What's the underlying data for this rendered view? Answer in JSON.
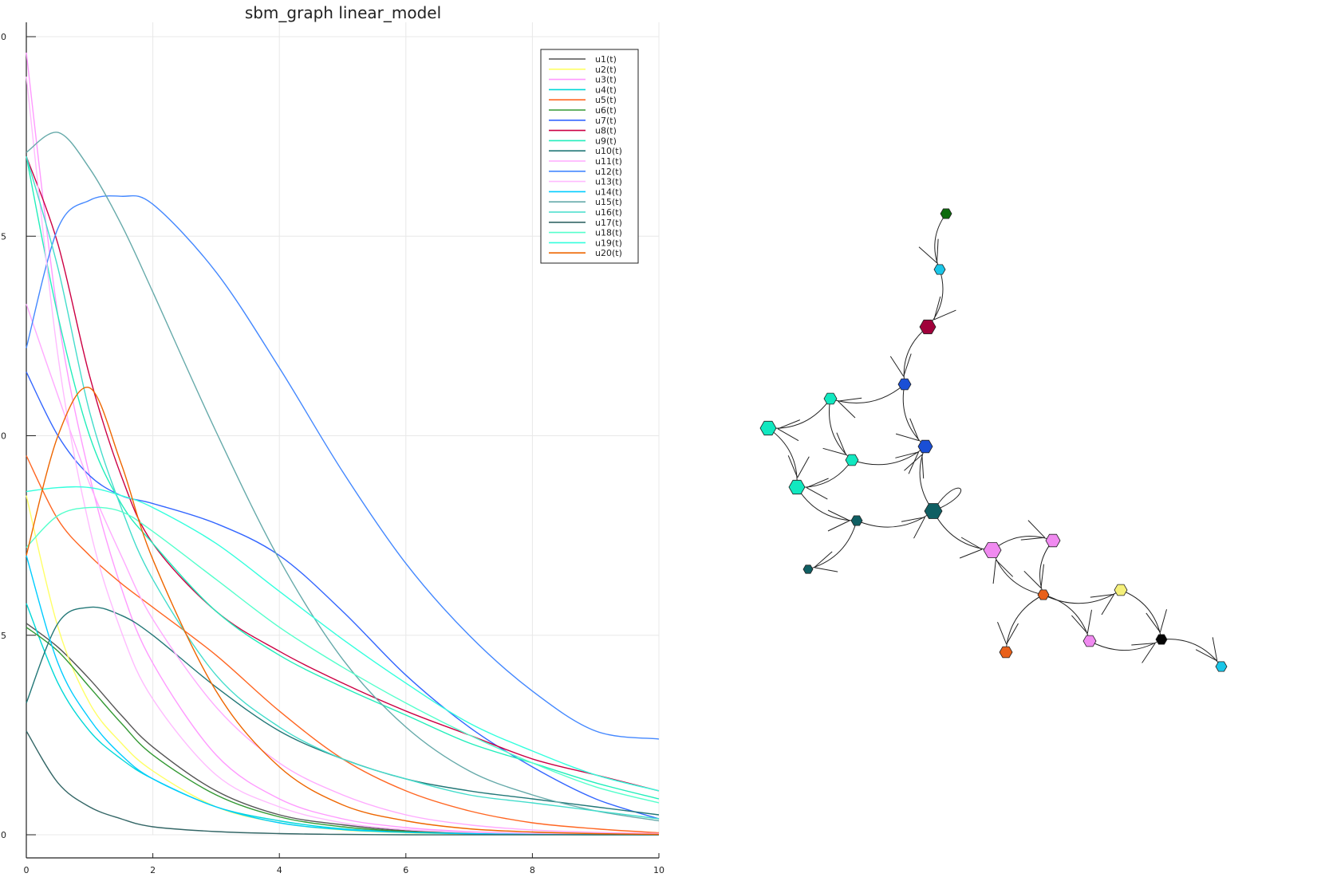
{
  "chart_data": [
    {
      "type": "line",
      "title": "sbm_graph linear_model",
      "xlabel": "",
      "ylabel": "",
      "xlim": [
        0,
        10
      ],
      "ylim": [
        0,
        20
      ],
      "x_ticks": [
        "0",
        "2",
        "4",
        "6",
        "8",
        "10"
      ],
      "y_ticks": [
        "0",
        "5",
        "0",
        "5",
        "0"
      ],
      "grid": true,
      "legend_position": "top-right",
      "x": [
        0,
        0.5,
        1,
        1.5,
        2,
        3,
        4,
        5,
        6,
        7,
        8,
        9,
        10
      ],
      "series": [
        {
          "name": "u1(t)",
          "color": "#555555",
          "values": [
            5.3,
            4.7,
            3.9,
            3.0,
            2.2,
            1.1,
            0.5,
            0.25,
            0.1,
            0.05,
            0.02,
            0.01,
            0.0
          ]
        },
        {
          "name": "u2(t)",
          "color": "#ffff66",
          "values": [
            8.5,
            5.2,
            3.3,
            2.3,
            1.6,
            0.7,
            0.3,
            0.12,
            0.05,
            0.02,
            0.01,
            0.0,
            0.0
          ]
        },
        {
          "name": "u3(t)",
          "color": "#ff99ff",
          "values": [
            19.6,
            13.0,
            9.0,
            6.2,
            4.3,
            2.0,
            0.9,
            0.4,
            0.18,
            0.08,
            0.04,
            0.02,
            0.01
          ]
        },
        {
          "name": "u4(t)",
          "color": "#00d8d8",
          "values": [
            5.8,
            3.8,
            2.6,
            1.9,
            1.4,
            0.7,
            0.35,
            0.15,
            0.07,
            0.03,
            0.02,
            0.01,
            0.0
          ]
        },
        {
          "name": "u5(t)",
          "color": "#ff6622",
          "values": [
            9.5,
            7.9,
            7.0,
            6.3,
            5.7,
            4.5,
            3.1,
            1.9,
            1.1,
            0.6,
            0.3,
            0.15,
            0.05
          ]
        },
        {
          "name": "u6(t)",
          "color": "#339933",
          "values": [
            5.2,
            4.6,
            3.7,
            2.8,
            2.0,
            1.0,
            0.45,
            0.2,
            0.08,
            0.04,
            0.02,
            0.01,
            0.0
          ]
        },
        {
          "name": "u7(t)",
          "color": "#3366ff",
          "values": [
            11.6,
            10.0,
            9.0,
            8.5,
            8.3,
            7.8,
            7.0,
            5.6,
            4.0,
            2.7,
            1.7,
            0.9,
            0.4
          ]
        },
        {
          "name": "u8(t)",
          "color": "#cc0044",
          "values": [
            17.0,
            14.8,
            11.5,
            9.0,
            7.3,
            5.6,
            4.6,
            3.8,
            3.1,
            2.5,
            1.9,
            1.5,
            1.1
          ]
        },
        {
          "name": "u9(t)",
          "color": "#22eebb",
          "values": [
            17.0,
            13.0,
            10.0,
            8.3,
            7.3,
            5.6,
            4.5,
            3.7,
            3.0,
            2.3,
            1.8,
            1.3,
            0.9
          ]
        },
        {
          "name": "u10(t)",
          "color": "#227777",
          "values": [
            3.3,
            5.3,
            5.7,
            5.5,
            5.0,
            3.7,
            2.6,
            1.9,
            1.4,
            1.1,
            0.9,
            0.7,
            0.5
          ]
        },
        {
          "name": "u11(t)",
          "color": "#ffaaff",
          "values": [
            13.3,
            11.0,
            8.8,
            7.0,
            5.4,
            3.2,
            1.8,
            1.0,
            0.5,
            0.25,
            0.12,
            0.06,
            0.03
          ]
        },
        {
          "name": "u12(t)",
          "color": "#4488ff",
          "values": [
            12.2,
            15.2,
            15.9,
            16.0,
            15.8,
            14.1,
            11.7,
            9.1,
            6.8,
            5.0,
            3.6,
            2.6,
            2.4
          ]
        },
        {
          "name": "u13(t)",
          "color": "#ffbbff",
          "values": [
            19.0,
            12.0,
            7.7,
            5.1,
            3.4,
            1.5,
            0.7,
            0.3,
            0.13,
            0.06,
            0.03,
            0.01,
            0.0
          ]
        },
        {
          "name": "u14(t)",
          "color": "#00ccff",
          "values": [
            7.0,
            4.3,
            2.9,
            2.0,
            1.4,
            0.7,
            0.3,
            0.13,
            0.06,
            0.03,
            0.01,
            0.0,
            0.0
          ]
        },
        {
          "name": "u15(t)",
          "color": "#66aaaa",
          "values": [
            17.1,
            17.6,
            16.7,
            15.3,
            13.6,
            10.1,
            6.9,
            4.4,
            2.7,
            1.6,
            1.0,
            0.6,
            0.35
          ]
        },
        {
          "name": "u16(t)",
          "color": "#44ddcc",
          "values": [
            17.0,
            14.2,
            10.6,
            8.2,
            6.4,
            4.0,
            2.7,
            1.9,
            1.4,
            1.0,
            0.8,
            0.6,
            0.4
          ]
        },
        {
          "name": "u17(t)",
          "color": "#336666",
          "values": [
            2.6,
            1.3,
            0.7,
            0.4,
            0.2,
            0.08,
            0.03,
            0.01,
            0.0,
            0.0,
            0.0,
            0.0,
            0.0
          ]
        },
        {
          "name": "u18(t)",
          "color": "#55ffcc",
          "values": [
            7.2,
            8.0,
            8.2,
            8.1,
            7.6,
            6.4,
            5.2,
            4.2,
            3.3,
            2.5,
            1.8,
            1.2,
            0.8
          ]
        },
        {
          "name": "u19(t)",
          "color": "#33ffdd",
          "values": [
            8.6,
            8.7,
            8.7,
            8.5,
            8.2,
            7.3,
            6.1,
            4.9,
            3.8,
            2.8,
            2.1,
            1.5,
            1.1
          ]
        },
        {
          "name": "u20(t)",
          "color": "#ee6600",
          "values": [
            7.0,
            10.0,
            11.2,
            9.3,
            6.9,
            3.6,
            1.7,
            0.75,
            0.35,
            0.15,
            0.07,
            0.03,
            0.01
          ]
        }
      ]
    },
    {
      "type": "graph",
      "title": "",
      "nodes": [
        {
          "id": 1,
          "color": "#0d6b0d"
        },
        {
          "id": 2,
          "color": "#1ac6e8"
        },
        {
          "id": 3,
          "color": "#a0003a"
        },
        {
          "id": 4,
          "color": "#1a4fd6"
        },
        {
          "id": 5,
          "color": "#11e8c0"
        },
        {
          "id": 6,
          "color": "#11e8c0"
        },
        {
          "id": 7,
          "color": "#1a4fd6"
        },
        {
          "id": 8,
          "color": "#11e8c0"
        },
        {
          "id": 9,
          "color": "#11e8c0"
        },
        {
          "id": 10,
          "color": "#0f5f63"
        },
        {
          "id": 11,
          "color": "#0f5f63"
        },
        {
          "id": 12,
          "color": "#0f5f63"
        },
        {
          "id": 13,
          "color": "#f08af0"
        },
        {
          "id": 14,
          "color": "#f08af0"
        },
        {
          "id": 15,
          "color": "#e8601a"
        },
        {
          "id": 16,
          "color": "#f5f07a"
        },
        {
          "id": 17,
          "color": "#e8601a"
        },
        {
          "id": 18,
          "color": "#f08af0"
        },
        {
          "id": 19,
          "color": "#050505"
        },
        {
          "id": 20,
          "color": "#1ac6e8"
        }
      ],
      "edges": [
        [
          1,
          2
        ],
        [
          2,
          3
        ],
        [
          3,
          4
        ],
        [
          4,
          5
        ],
        [
          4,
          7
        ],
        [
          5,
          6
        ],
        [
          5,
          8
        ],
        [
          6,
          9
        ],
        [
          8,
          7
        ],
        [
          8,
          9
        ],
        [
          9,
          10
        ],
        [
          10,
          12
        ],
        [
          10,
          11
        ],
        [
          11,
          7
        ],
        [
          11,
          13
        ],
        [
          13,
          14
        ],
        [
          14,
          15
        ],
        [
          15,
          13
        ],
        [
          15,
          16
        ],
        [
          16,
          19
        ],
        [
          15,
          17
        ],
        [
          15,
          18
        ],
        [
          18,
          19
        ],
        [
          19,
          20
        ],
        [
          11,
          11
        ]
      ]
    }
  ]
}
